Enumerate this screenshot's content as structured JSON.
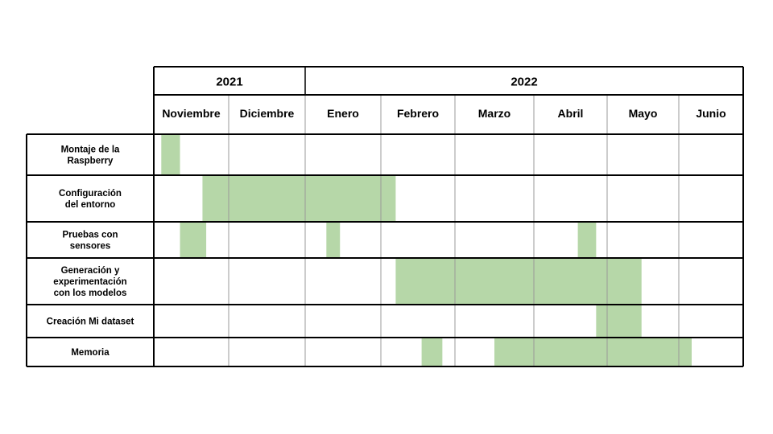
{
  "colors": {
    "bar": "#b6d7a8",
    "border": "#000000",
    "gridline": "#999999"
  },
  "years": [
    {
      "label": "2021",
      "months": 2
    },
    {
      "label": "2022",
      "months": 6
    }
  ],
  "months": [
    "Noviembre",
    "Diciembre",
    "Enero",
    "Febrero",
    "Marzo",
    "Abril",
    "Mayo",
    "Junio"
  ],
  "tasks": [
    {
      "lines": [
        "Montaje de la",
        "Raspberry"
      ]
    },
    {
      "lines": [
        "Configuración",
        "del entorno"
      ]
    },
    {
      "lines": [
        "Pruebas con",
        "sensores"
      ]
    },
    {
      "lines": [
        "Generación y",
        "experimentación",
        "con los modelos"
      ]
    },
    {
      "lines": [
        "Creación Mi dataset"
      ]
    },
    {
      "lines": [
        "Memoria"
      ]
    }
  ],
  "chart_data": {
    "type": "gantt",
    "time_unit": "month",
    "periods": [
      "2021-11",
      "2021-12",
      "2022-01",
      "2022-02",
      "2022-03",
      "2022-04",
      "2022-05",
      "2022-06"
    ],
    "bars": [
      {
        "task": "Montaje de la Raspberry",
        "start": 0.1,
        "end": 0.35
      },
      {
        "task": "Configuración del entorno",
        "start": 0.65,
        "end": 3.2
      },
      {
        "task": "Pruebas con sensores",
        "start": 0.35,
        "end": 0.7
      },
      {
        "task": "Pruebas con sensores",
        "start": 2.28,
        "end": 2.46
      },
      {
        "task": "Pruebas con sensores",
        "start": 5.6,
        "end": 5.85
      },
      {
        "task": "Generación y experimentación con los modelos",
        "start": 3.2,
        "end": 6.48
      },
      {
        "task": "Creación Mi dataset",
        "start": 5.85,
        "end": 6.48
      },
      {
        "task": "Memoria",
        "start": 3.55,
        "end": 3.83
      },
      {
        "task": "Memoria",
        "start": 4.5,
        "end": 7.2
      }
    ]
  }
}
